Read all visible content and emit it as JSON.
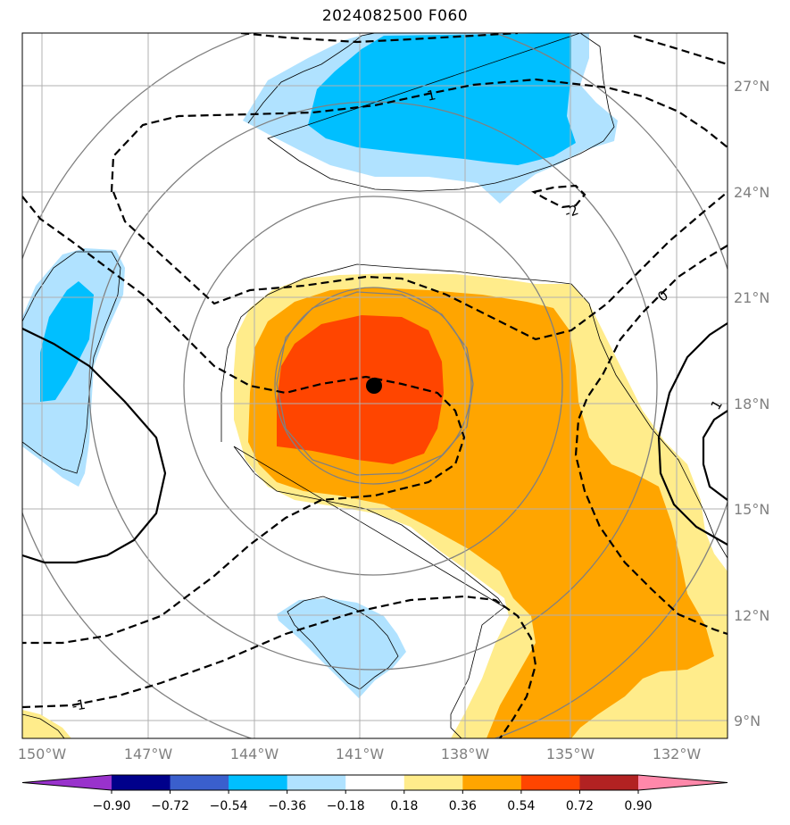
{
  "title": "2024082500 F060",
  "lon_labels": [
    "150°W",
    "147°W",
    "144°W",
    "141°W",
    "138°W",
    "135°W",
    "132°W"
  ],
  "lat_labels": [
    "27°N",
    "24°N",
    "21°N",
    "18°N",
    "15°N",
    "12°N",
    "9°N"
  ],
  "contour_labels": [
    "1",
    "-2",
    "0",
    "1",
    "-1"
  ],
  "storm_center": {
    "lon": "140.6°W",
    "lat": "18.5°N"
  },
  "colorbar": {
    "ticks": [
      "−0.90",
      "−0.72",
      "−0.54",
      "−0.36",
      "−0.18",
      "0.18",
      "0.36",
      "0.54",
      "0.72",
      "0.90"
    ],
    "colors": [
      "#9932cc",
      "#00008b",
      "#3a5fcd",
      "#00bfff",
      "#b0e2ff",
      "#ffffff",
      "#ffec8b",
      "#ffa500",
      "#ff4500",
      "#b22222",
      "#ff88aa"
    ]
  },
  "palette": {
    "neg_strong": "#00bfff",
    "neg_weak": "#b0e2ff",
    "pos_weak": "#ffec8b",
    "pos_mid": "#ffa500",
    "pos_strong": "#ff4500"
  }
}
